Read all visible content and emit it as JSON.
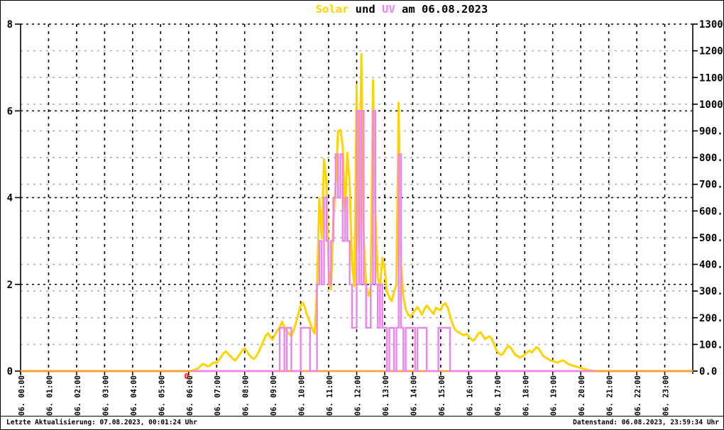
{
  "title": {
    "solar": "Solar",
    "und": " und ",
    "uv": "UV",
    "rest": " am 06.08.2023",
    "full": "Solar und UV am 06.08.2023"
  },
  "footer": {
    "left": "Letzte Aktualisierung: 07.08.2023, 00:01:24 Uhr",
    "right": "Datenstand: 06.08.2023, 23:59:34 Uhr"
  },
  "colors": {
    "solar": "#ffd300",
    "uv": "#ee82ee",
    "axis_baseline": "#ff9a40",
    "grid_major": "#000000",
    "grid_minor": "#b0b0b0",
    "marker": "#ff0000",
    "background": "#ffffff",
    "text": "#000000"
  },
  "chart_data": {
    "type": "line",
    "title": "Solar und UV am 06.08.2023",
    "grid": true,
    "legend_position": "title-colored-words",
    "x_axis": {
      "start_minutes": 0,
      "end_minutes": 1440,
      "step_minutes": 5,
      "labels": [
        "06. 00:00",
        "06. 01:00",
        "06. 02:00",
        "06. 03:00",
        "06. 04:00",
        "06. 05:00",
        "06. 06:00",
        "06. 07:00",
        "06. 08:00",
        "06. 09:00",
        "06. 10:00",
        "06. 11:00",
        "06. 12:00",
        "06. 13:00",
        "06. 14:00",
        "06. 15:00",
        "06. 16:00",
        "06. 17:00",
        "06. 18:00",
        "06. 19:00",
        "06. 20:00",
        "06. 21:00",
        "06. 22:00",
        "06. 23:00"
      ]
    },
    "left_axis": {
      "min": 0,
      "max": 8,
      "ticks": [
        0,
        2,
        4,
        6,
        8
      ],
      "labels": [
        "0",
        "2",
        "4",
        "6",
        "8"
      ],
      "series": "UV"
    },
    "right_axis": {
      "min": 0,
      "max": 1300,
      "tick_step": 100,
      "labels": [
        "0.0",
        "100.0",
        "200.0",
        "300.0",
        "400.0",
        "500.0",
        "600.0",
        "700.0",
        "800.0",
        "900.0",
        "1000",
        "1100",
        "1200",
        "1300"
      ],
      "series": "Solar"
    },
    "markers": [
      {
        "text": "0",
        "color": "#ff0000",
        "x_minutes": 355,
        "position": "baseline-sunrise"
      }
    ],
    "baseline": {
      "color": "#ff9a40",
      "covered_by_uv_from_minutes": 370,
      "covered_by_uv_to_minutes": 1230
    },
    "series": [
      {
        "name": "Solar",
        "axis": "right",
        "color": "#ffd300",
        "style": "line",
        "values": [
          0,
          0,
          0,
          0,
          0,
          0,
          0,
          0,
          0,
          0,
          0,
          0,
          0,
          0,
          0,
          0,
          0,
          0,
          0,
          0,
          0,
          0,
          0,
          0,
          0,
          0,
          0,
          0,
          0,
          0,
          0,
          0,
          0,
          0,
          0,
          0,
          0,
          0,
          0,
          0,
          0,
          0,
          0,
          0,
          0,
          0,
          0,
          0,
          0,
          0,
          0,
          0,
          0,
          0,
          0,
          0,
          0,
          0,
          0,
          0,
          0,
          0,
          0,
          0,
          0,
          0,
          0,
          0,
          0,
          0,
          0,
          0,
          0,
          0,
          3,
          6,
          10,
          18,
          27,
          24,
          18,
          20,
          28,
          33,
          30,
          42,
          55,
          68,
          74,
          64,
          55,
          46,
          40,
          52,
          65,
          78,
          85,
          74,
          60,
          50,
          46,
          56,
          72,
          92,
          112,
          132,
          142,
          128,
          118,
          136,
          152,
          163,
          185,
          166,
          150,
          141,
          130,
          152,
          182,
          214,
          246,
          256,
          232,
          204,
          183,
          158,
          140,
          310,
          648,
          498,
          795,
          716,
          380,
          305,
          558,
          700,
          898,
          903,
          846,
          598,
          818,
          704,
          402,
          318,
          1073,
          452,
          1188,
          498,
          324,
          282,
          304,
          1090,
          598,
          352,
          318,
          424,
          382,
          298,
          276,
          262,
          298,
          322,
          1005,
          398,
          278,
          232,
          212,
          202,
          216,
          228,
          240,
          226,
          212,
          232,
          246,
          236,
          224,
          214,
          238,
          232,
          228,
          248,
          254,
          238,
          208,
          178,
          158,
          148,
          144,
          138,
          134,
          140,
          130,
          120,
          114,
          124,
          140,
          146,
          134,
          120,
          126,
          130,
          118,
          98,
          76,
          66,
          60,
          70,
          84,
          94,
          88,
          74,
          60,
          56,
          50,
          56,
          62,
          70,
          76,
          70,
          80,
          90,
          84,
          70,
          56,
          50,
          46,
          40,
          38,
          35,
          32,
          36,
          40,
          38,
          30,
          26,
          22,
          20,
          17,
          14,
          12,
          9,
          7,
          5,
          3,
          1,
          0,
          0,
          0,
          0,
          0,
          0,
          0,
          0,
          0,
          0,
          0,
          0,
          0,
          0,
          0,
          0,
          0,
          0,
          0,
          0,
          0,
          0,
          0,
          0,
          0,
          0,
          0,
          0,
          0,
          0,
          0,
          0,
          0,
          0,
          0,
          0,
          0,
          0,
          0,
          0,
          0,
          0,
          0
        ]
      },
      {
        "name": "UV",
        "axis": "left",
        "color": "#ee82ee",
        "style": "step",
        "draw_range_minutes": [
          370,
          1230
        ],
        "values": [
          0,
          0,
          0,
          0,
          0,
          0,
          0,
          0,
          0,
          0,
          0,
          0,
          0,
          0,
          0,
          0,
          0,
          0,
          0,
          0,
          0,
          0,
          0,
          0,
          0,
          0,
          0,
          0,
          0,
          0,
          0,
          0,
          0,
          0,
          0,
          0,
          0,
          0,
          0,
          0,
          0,
          0,
          0,
          0,
          0,
          0,
          0,
          0,
          0,
          0,
          0,
          0,
          0,
          0,
          0,
          0,
          0,
          0,
          0,
          0,
          0,
          0,
          0,
          0,
          0,
          0,
          0,
          0,
          0,
          0,
          0,
          0,
          0,
          0,
          0,
          0,
          0,
          0,
          0,
          0,
          0,
          0,
          0,
          0,
          0,
          0,
          0,
          0,
          0,
          0,
          0,
          0,
          0,
          0,
          0,
          0,
          0,
          0,
          0,
          0,
          0,
          0,
          0,
          0,
          0,
          0,
          0,
          0,
          0,
          0,
          0,
          1,
          1,
          0,
          1,
          1,
          0,
          0,
          0,
          0,
          1,
          1,
          1,
          1,
          0,
          0,
          0,
          2,
          3,
          2,
          4,
          3,
          2,
          3,
          4,
          5,
          4,
          5,
          3,
          4,
          3,
          2,
          1,
          1,
          6,
          2,
          6,
          2,
          1,
          1,
          2,
          6,
          2,
          1,
          2,
          1,
          1,
          0,
          1,
          1,
          0,
          1,
          5,
          1,
          0,
          1,
          1,
          1,
          1,
          0,
          1,
          1,
          1,
          1,
          0,
          0,
          0,
          0,
          0,
          1,
          1,
          1,
          1,
          1,
          0,
          0,
          0,
          0,
          0,
          0,
          0,
          0,
          0,
          0,
          0,
          0,
          0,
          0,
          0,
          0,
          0,
          0,
          0,
          0,
          0,
          0,
          0,
          0,
          0,
          0,
          0,
          0,
          0,
          0,
          0,
          0,
          0,
          0,
          0,
          0,
          0,
          0,
          0,
          0,
          0,
          0,
          0,
          0,
          0,
          0,
          0,
          0,
          0,
          0,
          0,
          0,
          0,
          0,
          0,
          0,
          0,
          0,
          0,
          0,
          0,
          0,
          0,
          0,
          0,
          0,
          0,
          0,
          0,
          0,
          0,
          0,
          0,
          0,
          0,
          0,
          0,
          0,
          0,
          0,
          0,
          0,
          0,
          0,
          0,
          0,
          0,
          0,
          0,
          0,
          0,
          0,
          0,
          0,
          0,
          0,
          0,
          0,
          0,
          0,
          0,
          0,
          0,
          0,
          0
        ]
      }
    ]
  }
}
